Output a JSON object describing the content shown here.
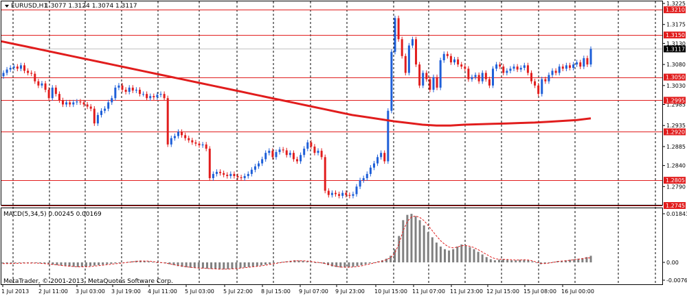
{
  "title": {
    "symbol_timeframe": "EURUSD,H1",
    "ohlc": "1.3077 1.3124 1.3074 1.3117",
    "arrow_icon": "triangle-down-icon"
  },
  "macd": {
    "label": "MACD(5,34,5) 0.00245 0.00169",
    "ticks": [
      "0.01843",
      "0.00",
      "-0.00764"
    ],
    "macd_line": [
      -0.0005,
      -0.0005,
      -0.0005,
      -0.0004,
      -0.0003,
      -0.0003,
      -0.0002,
      -0.0002,
      -0.0003,
      -0.0004,
      -0.0006,
      -0.0008,
      -0.001,
      -0.0012,
      -0.0014,
      -0.0016,
      -0.0018,
      -0.0019,
      -0.002,
      -0.0019,
      -0.0018,
      -0.0016,
      -0.0014,
      -0.0012,
      -0.001,
      -0.0008,
      -0.0006,
      -0.0004,
      -0.0002,
      0.0,
      0.0002,
      0.0004,
      0.0006,
      0.0007,
      0.0006,
      0.0004,
      0.0002,
      0.0,
      -0.0002,
      -0.0004,
      -0.0008,
      -0.0012,
      -0.0016,
      -0.0019,
      -0.0021,
      -0.0023,
      -0.0024,
      -0.0025,
      -0.0026,
      -0.0027,
      -0.0028,
      -0.0029,
      -0.003,
      -0.003,
      -0.0029,
      -0.0028,
      -0.0026,
      -0.0024,
      -0.0022,
      -0.002,
      -0.0018,
      -0.0016,
      -0.0013,
      -0.001,
      -0.0007,
      -0.0004,
      -0.0001,
      0.0002,
      0.0004,
      0.0006,
      0.0008,
      0.0007,
      0.0006,
      0.0004,
      0.0002,
      0.0,
      -0.0002,
      -0.0006,
      -0.0012,
      -0.0017,
      -0.002,
      -0.0022,
      -0.0022,
      -0.0021,
      -0.0019,
      -0.0016,
      -0.0012,
      -0.0008,
      -0.0004,
      0.0,
      0.0004,
      0.0008,
      0.0014,
      0.0025,
      0.005,
      0.01,
      0.016,
      0.018,
      0.0184,
      0.0175,
      0.016,
      0.014,
      0.0115,
      0.0095,
      0.0075,
      0.006,
      0.005,
      0.0045,
      0.005,
      0.006,
      0.0068,
      0.0065,
      0.0058,
      0.005,
      0.004,
      0.003,
      0.002,
      0.0012,
      0.0008,
      0.001,
      0.0012,
      0.001,
      0.0008,
      0.0008,
      0.001,
      0.001,
      0.0008,
      0.0004,
      -0.0002,
      -0.0008,
      -0.0006,
      -0.0002,
      0.0002,
      0.0005,
      0.0006,
      0.0008,
      0.001,
      0.0012,
      0.0014,
      0.0016,
      0.002,
      0.0025
    ],
    "signal_line": [
      -0.0005,
      -0.0005,
      -0.0005,
      -0.0004,
      -0.0004,
      -0.0003,
      -0.0003,
      -0.0003,
      -0.0003,
      -0.0004,
      -0.0005,
      -0.0007,
      -0.0009,
      -0.0011,
      -0.0013,
      -0.0015,
      -0.0016,
      -0.0018,
      -0.0019,
      -0.0019,
      -0.0019,
      -0.0018,
      -0.0016,
      -0.0014,
      -0.0012,
      -0.001,
      -0.0008,
      -0.0006,
      -0.0004,
      -0.0002,
      0.0,
      0.0002,
      0.0004,
      0.0005,
      0.0005,
      0.0005,
      0.0003,
      0.0001,
      -0.0001,
      -0.0003,
      -0.0006,
      -0.001,
      -0.0013,
      -0.0016,
      -0.0019,
      -0.0021,
      -0.0023,
      -0.0024,
      -0.0025,
      -0.0026,
      -0.0027,
      -0.0028,
      -0.0029,
      -0.0029,
      -0.0029,
      -0.0028,
      -0.0027,
      -0.0025,
      -0.0023,
      -0.0021,
      -0.0019,
      -0.0017,
      -0.0015,
      -0.0012,
      -0.0009,
      -0.0006,
      -0.0003,
      0.0,
      0.0002,
      0.0004,
      0.0006,
      0.0006,
      0.0006,
      0.0005,
      0.0003,
      0.0001,
      -0.0001,
      -0.0004,
      -0.0008,
      -0.0013,
      -0.0017,
      -0.002,
      -0.0021,
      -0.0021,
      -0.002,
      -0.0018,
      -0.0015,
      -0.0011,
      -0.0007,
      -0.0003,
      0.0001,
      0.0005,
      0.001,
      0.0018,
      0.0035,
      0.007,
      0.012,
      0.0155,
      0.0172,
      0.0176,
      0.017,
      0.0158,
      0.014,
      0.012,
      0.01,
      0.0082,
      0.0068,
      0.0058,
      0.0055,
      0.0058,
      0.0063,
      0.0064,
      0.0061,
      0.0056,
      0.0048,
      0.0039,
      0.003,
      0.0021,
      0.0014,
      0.0012,
      0.0012,
      0.0011,
      0.001,
      0.0009,
      0.0009,
      0.001,
      0.0009,
      0.0006,
      0.0001,
      -0.0004,
      -0.0005,
      -0.0003,
      0.0,
      0.0003,
      0.0005,
      0.0006,
      0.0008,
      0.001,
      0.0012,
      0.0014,
      0.0017,
      0.0017
    ]
  },
  "price_axis": {
    "ticks": [
      "1.3225",
      "1.3175",
      "1.3130",
      "1.3080",
      "1.3030",
      "1.2985",
      "1.2935",
      "1.2885",
      "1.2840",
      "1.2790"
    ],
    "current_price": "1.3117"
  },
  "levels": [
    {
      "price": 1.321,
      "label": "1.3210"
    },
    {
      "price": 1.315,
      "label": "1.3150"
    },
    {
      "price": 1.305,
      "label": "1.3050"
    },
    {
      "price": 1.2995,
      "label": "1.2995"
    },
    {
      "price": 1.292,
      "label": "1.2920"
    },
    {
      "price": 1.2805,
      "label": "1.2805"
    },
    {
      "price": 1.2745,
      "label": "1.2745"
    }
  ],
  "time_axis": [
    "1 Jul 2013",
    "2 Jul 11:00",
    "3 Jul 03:00",
    "3 Jul 19:00",
    "4 Jul 11:00",
    "5 Jul 03:00",
    "5 Jul 22:00",
    "8 Jul 15:00",
    "9 Jul 07:00",
    "9 Jul 23:00",
    "10 Jul 15:00",
    "11 Jul 07:00",
    "11 Jul 23:00",
    "12 Jul 15:00",
    "15 Jul 08:00",
    "16 Jul 00:00"
  ],
  "copyright": "MetaTrader, © 2001-2013, MetaQuotes Software Corp.",
  "colors": {
    "bull": "#1e5fd8",
    "bear": "#e11d1d",
    "level": "#e11d1d",
    "ma": "#e11d1d",
    "histogram": "#808080",
    "signal": "#e11d1d",
    "grid": "#000000"
  },
  "chart_data": {
    "type": "candlestick",
    "symbol": "EURUSD",
    "timeframe": "H1",
    "ylim": [
      1.2745,
      1.3225
    ],
    "close": [
      1.306,
      1.3068,
      1.3072,
      1.3075,
      1.307,
      1.3078,
      1.3065,
      1.306,
      1.3058,
      1.304,
      1.303,
      1.3035,
      1.302,
      1.3,
      1.3025,
      1.301,
      1.2995,
      1.2985,
      1.299,
      1.2985,
      1.299,
      1.2992,
      1.299,
      1.2985,
      1.298,
      1.2975,
      1.294,
      1.296,
      1.297,
      1.2975,
      1.299,
      1.3,
      1.3025,
      1.303,
      1.302,
      1.3015,
      1.3025,
      1.3018,
      1.302,
      1.301,
      1.301,
      1.3,
      1.3005,
      1.3002,
      1.3008,
      1.301,
      1.3,
      1.289,
      1.2905,
      1.291,
      1.292,
      1.2912,
      1.2905,
      1.29,
      1.2895,
      1.2892,
      1.2888,
      1.289,
      1.288,
      1.281,
      1.282,
      1.2825,
      1.2822,
      1.2818,
      1.2815,
      1.282,
      1.2815,
      1.2812,
      1.281,
      1.2815,
      1.282,
      1.283,
      1.2838,
      1.2845,
      1.2855,
      1.287,
      1.2875,
      1.286,
      1.2872,
      1.2878,
      1.2876,
      1.2865,
      1.287,
      1.2855,
      1.285,
      1.2865,
      1.288,
      1.2895,
      1.2885,
      1.287,
      1.2875,
      1.286,
      1.278,
      1.277,
      1.2775,
      1.2772,
      1.2768,
      1.2775,
      1.277,
      1.2768,
      1.2772,
      1.279,
      1.2805,
      1.281,
      1.282,
      1.2835,
      1.2845,
      1.286,
      1.287,
      1.285,
      1.297,
      1.311,
      1.319,
      1.314,
      1.31,
      1.306,
      1.3125,
      1.314,
      1.308,
      1.303,
      1.306,
      1.3045,
      1.302,
      1.305,
      1.3025,
      1.309,
      1.3105,
      1.31,
      1.3085,
      1.3092,
      1.308,
      1.3075,
      1.307,
      1.3045,
      1.305,
      1.3055,
      1.304,
      1.306,
      1.3045,
      1.303,
      1.307,
      1.308,
      1.3075,
      1.306,
      1.3065,
      1.307,
      1.3075,
      1.3068,
      1.3072,
      1.3078,
      1.306,
      1.304,
      1.303,
      1.301,
      1.3045,
      1.304,
      1.3055,
      1.3065,
      1.306,
      1.3075,
      1.307,
      1.3078,
      1.3072,
      1.308,
      1.3085,
      1.3075,
      1.3095,
      1.308,
      1.3117
    ],
    "ma_line": [
      1.3135,
      1.3128,
      1.3121,
      1.3114,
      1.3107,
      1.31,
      1.3093,
      1.3086,
      1.3079,
      1.3072,
      1.3065,
      1.3058,
      1.3051,
      1.3044,
      1.3037,
      1.303,
      1.3023,
      1.3016,
      1.3009,
      1.3002,
      1.2995,
      1.2988,
      1.2981,
      1.2974,
      1.2967,
      1.296,
      1.2955,
      1.295,
      1.2945,
      1.2941,
      1.2937,
      1.2935,
      1.2935,
      1.2937,
      1.2938,
      1.2939,
      1.294,
      1.2941,
      1.2942,
      1.2944,
      1.2946,
      1.2948,
      1.2952
    ],
    "levels": [
      1.321,
      1.315,
      1.305,
      1.2995,
      1.292,
      1.2805,
      1.2745
    ]
  }
}
